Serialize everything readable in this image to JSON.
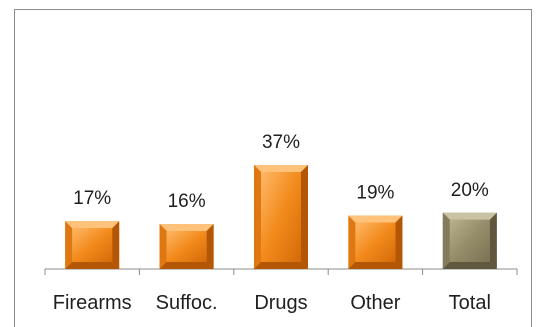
{
  "chart_data": {
    "type": "bar",
    "categories": [
      "Firearms",
      "Suffoc.",
      "Drugs",
      "Other",
      "Total"
    ],
    "values": [
      17,
      16,
      37,
      19,
      20
    ],
    "value_labels": [
      "17%",
      "16%",
      "37%",
      "19%",
      "20%"
    ],
    "bar_colors": [
      "#ef8a1e",
      "#ef8a1e",
      "#ef8a1e",
      "#ef8a1e",
      "#9a9070"
    ],
    "title": "",
    "xlabel": "",
    "ylabel": "",
    "ylim": [
      0,
      40
    ],
    "grid": false,
    "legend": "none"
  }
}
